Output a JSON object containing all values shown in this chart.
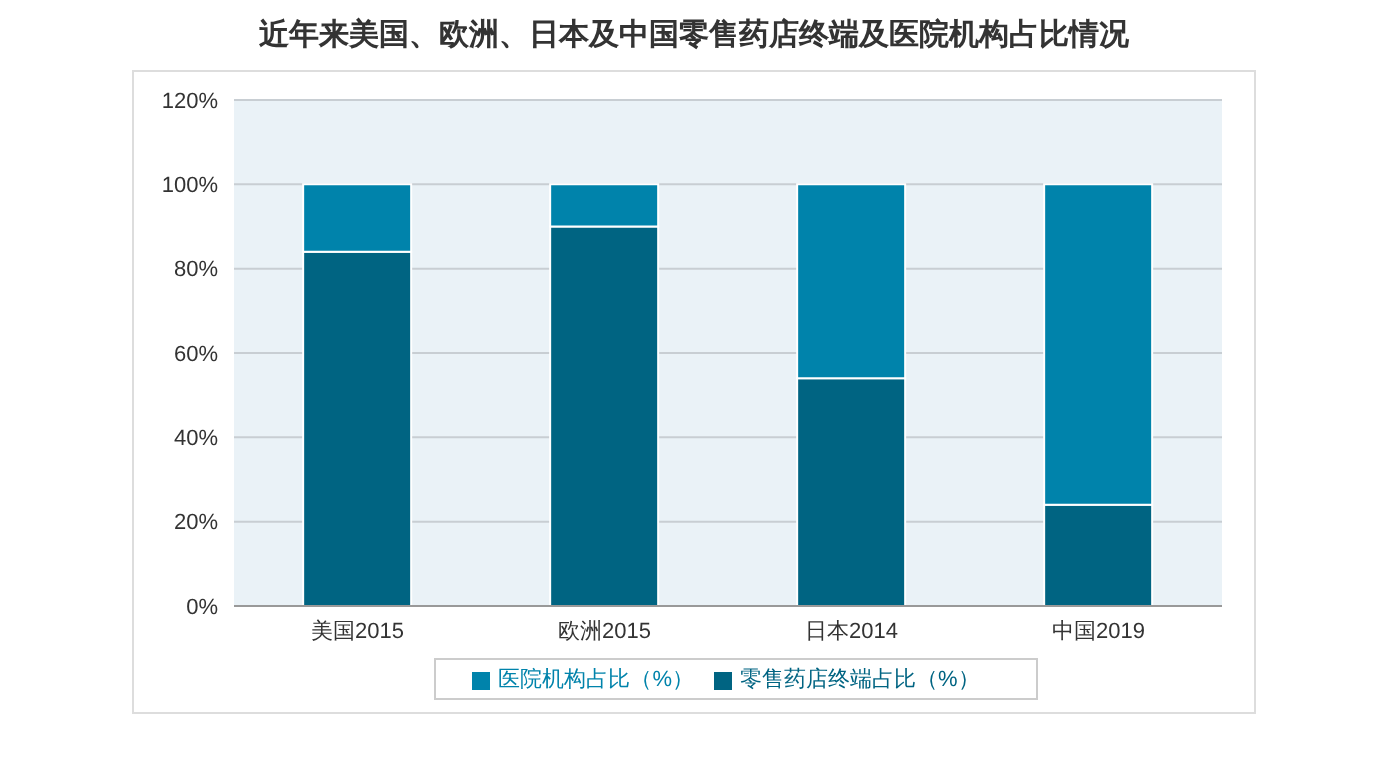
{
  "chart_data": {
    "type": "bar",
    "title": "近年来美国、欧洲、日本及中国零售药店终端及医院机构占比情况",
    "categories": [
      "美国2015",
      "欧洲2015",
      "日本2014",
      "中国2019"
    ],
    "stacked": true,
    "series": [
      {
        "name": "零售药店终端占比（%）",
        "color": "#006482",
        "values": [
          84,
          90,
          54,
          24
        ]
      },
      {
        "name": "医院机构占比（%）",
        "color": "#0083ab",
        "values": [
          16,
          10,
          46,
          76
        ]
      }
    ],
    "ylim": [
      0,
      120
    ],
    "yticks": [
      {
        "value": 0,
        "label": "0%"
      },
      {
        "value": 20,
        "label": "20%"
      },
      {
        "value": 40,
        "label": "40%"
      },
      {
        "value": 60,
        "label": "60%"
      },
      {
        "value": 80,
        "label": "80%"
      },
      {
        "value": 100,
        "label": "100%"
      },
      {
        "value": 120,
        "label": "120%"
      }
    ],
    "grid": "y",
    "legend": "bottom"
  }
}
